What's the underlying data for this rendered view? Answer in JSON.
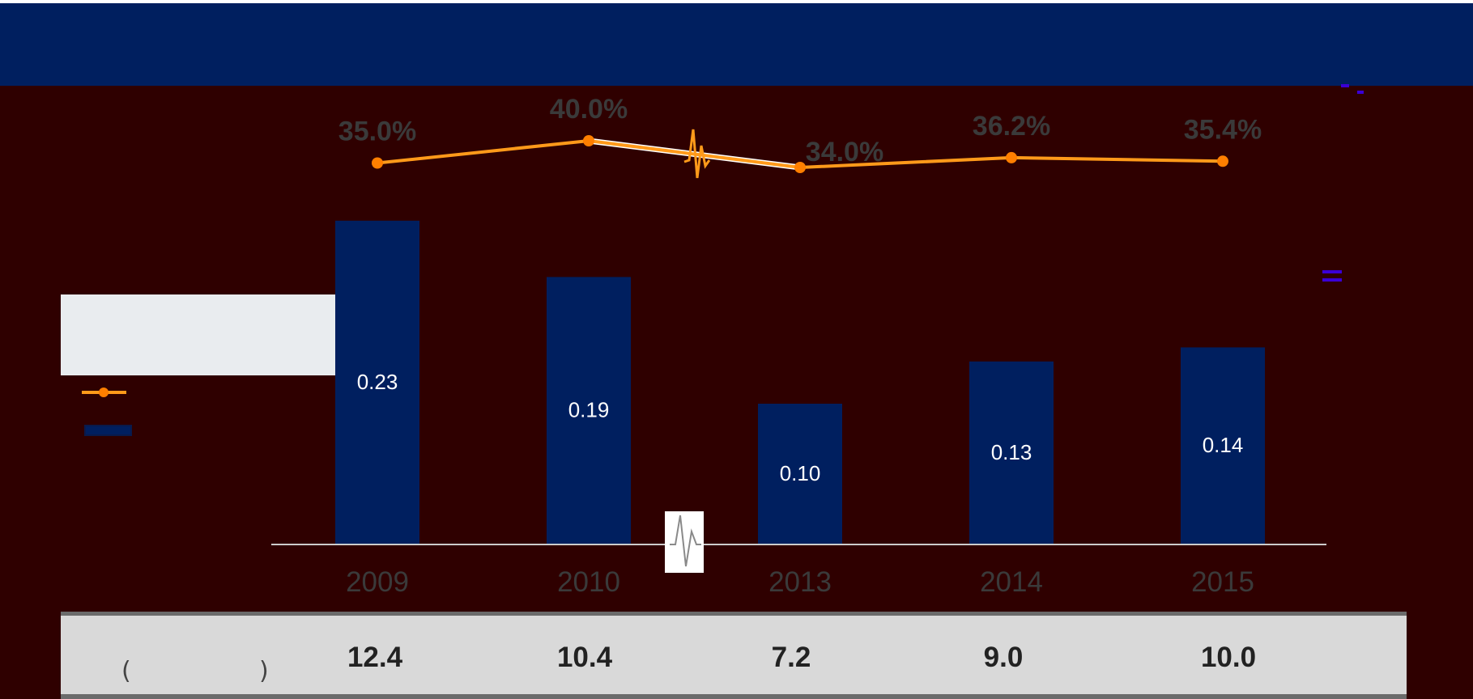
{
  "colors": {
    "background": "#2f0000",
    "header": "#001f5f",
    "bars": "#001f5f",
    "line": "#ff9a1a",
    "line_marker": "#ff7f00",
    "axis": "#cccccc",
    "pct_label": "#3a3a3a",
    "tick_label": "#3a3a3a",
    "table_band": "#d9d9d9",
    "table_text": "#222222"
  },
  "chart_data": {
    "type": "bar",
    "categories": [
      "2009",
      "2010",
      "2013",
      "2014",
      "2015"
    ],
    "axis_break_between": [
      "2010",
      "2013"
    ],
    "grid": false,
    "ylim": [
      0,
      0.25
    ],
    "series": [
      {
        "type": "bar",
        "values": [
          0.23,
          0.19,
          0.1,
          0.13,
          0.14
        ],
        "labels": [
          "0.23",
          "0.19",
          "0.10",
          "0.13",
          "0.14"
        ]
      },
      {
        "type": "line",
        "values": [
          35.0,
          40.0,
          34.0,
          36.2,
          35.4
        ],
        "labels": [
          "35.0%",
          "40.0%",
          "34.0%",
          "36.2%",
          "35.4%"
        ]
      }
    ],
    "table_row": {
      "label_open": "(",
      "label_close": ")",
      "values": [
        "12.4",
        "10.4",
        "7.2",
        "9.0",
        "10.0"
      ]
    }
  }
}
